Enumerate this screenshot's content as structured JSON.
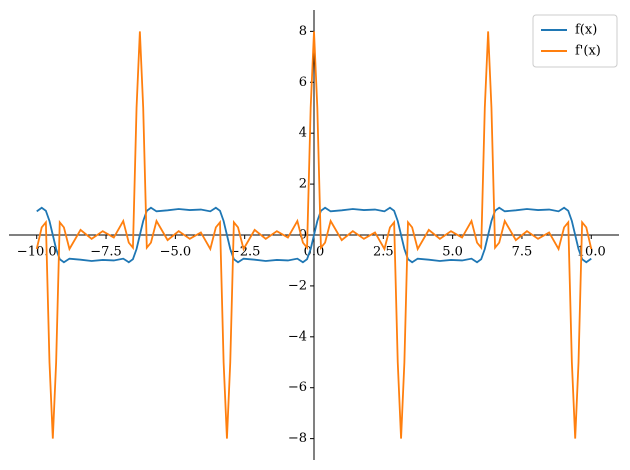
{
  "chart_data": {
    "type": "line",
    "x": [
      -10,
      -9.82,
      -9.67,
      -9.54,
      -9.42,
      -9.3,
      -9.17,
      -9.02,
      -8.82,
      -8.42,
      -8.02,
      -7.62,
      -7.22,
      -6.88,
      -6.68,
      -6.53,
      -6.4,
      -6.28,
      -6.16,
      -6.03,
      -5.88,
      -5.68,
      -5.28,
      -4.88,
      -4.48,
      -4.08,
      -3.74,
      -3.54,
      -3.39,
      -3.26,
      -3.14,
      -3.02,
      -2.89,
      -2.74,
      -2.54,
      -2.14,
      -1.74,
      -1.34,
      -0.94,
      -0.6,
      -0.4,
      -0.25,
      -0.12,
      0,
      0.12,
      0.25,
      0.4,
      0.6,
      1.0,
      1.4,
      1.8,
      2.2,
      2.54,
      2.74,
      2.89,
      3.02,
      3.14,
      3.26,
      3.39,
      3.54,
      3.74,
      4.14,
      4.54,
      4.94,
      5.34,
      5.68,
      5.88,
      6.03,
      6.16,
      6.28,
      6.4,
      6.53,
      6.68,
      6.88,
      7.28,
      7.68,
      8.08,
      8.48,
      8.82,
      9.02,
      9.17,
      9.3,
      9.42,
      9.54,
      9.67,
      9.82,
      10
    ],
    "series": [
      {
        "name": "f(x)",
        "color": "#1f77b4",
        "values": [
          0.93,
          1.07,
          0.95,
          0.55,
          0,
          -0.55,
          -0.95,
          -1.07,
          -0.93,
          -0.97,
          -1.02,
          -0.98,
          -1.0,
          -0.93,
          -1.07,
          -0.95,
          -0.55,
          0,
          0.55,
          0.95,
          1.07,
          0.93,
          0.97,
          1.02,
          0.98,
          1.0,
          0.93,
          1.07,
          0.95,
          0.55,
          0,
          -0.55,
          -0.95,
          -1.07,
          -0.93,
          -0.97,
          -1.02,
          -0.98,
          -1.0,
          -0.93,
          -1.07,
          -0.95,
          -0.55,
          0,
          0.55,
          0.95,
          1.07,
          0.93,
          0.97,
          1.02,
          0.98,
          1.0,
          0.93,
          1.07,
          0.95,
          0.55,
          0,
          -0.55,
          -0.95,
          -1.07,
          -0.93,
          -0.97,
          -1.02,
          -0.98,
          -1.0,
          -0.93,
          -1.07,
          -0.95,
          -0.55,
          0,
          0.55,
          0.95,
          1.07,
          0.93,
          0.97,
          1.02,
          0.98,
          1.0,
          0.93,
          1.07,
          0.95,
          0.55,
          0,
          -0.55,
          -0.95,
          -1.07,
          -0.93
        ]
      },
      {
        "name": "f'(x)",
        "color": "#ff7f0e",
        "values": [
          -0.55,
          0.3,
          0.5,
          -5.0,
          -8,
          -5.0,
          0.5,
          0.3,
          -0.55,
          0.2,
          -0.15,
          0.15,
          -0.1,
          0.55,
          -0.3,
          -0.5,
          5.0,
          8,
          5.0,
          -0.5,
          -0.3,
          0.55,
          -0.2,
          0.15,
          -0.15,
          0.1,
          -0.55,
          0.3,
          0.5,
          -5.0,
          -8,
          -5.0,
          0.5,
          0.3,
          -0.55,
          0.2,
          -0.15,
          0.15,
          -0.1,
          0.55,
          -0.3,
          -0.5,
          5.0,
          8,
          5.0,
          -0.5,
          -0.3,
          0.55,
          -0.2,
          0.15,
          -0.15,
          0.1,
          -0.55,
          0.3,
          0.5,
          -5.0,
          -8,
          -5.0,
          0.5,
          0.3,
          -0.55,
          0.2,
          -0.15,
          0.15,
          -0.1,
          0.55,
          -0.3,
          -0.5,
          5.0,
          8,
          5.0,
          -0.5,
          -0.3,
          0.55,
          -0.2,
          0.15,
          -0.15,
          0.1,
          -0.55,
          0.3,
          0.5,
          -5.0,
          -8,
          -5.0,
          0.5,
          0.3,
          -0.55
        ]
      }
    ],
    "xlim": [
      -11,
      11
    ],
    "ylim": [
      -8.84,
      8.84
    ],
    "xticks": [
      {
        "value": -10,
        "label": "−10.0"
      },
      {
        "value": -7.5,
        "label": "−7.5"
      },
      {
        "value": -5,
        "label": "−5.0"
      },
      {
        "value": -2.5,
        "label": "−2.5"
      },
      {
        "value": 0,
        "label": "0.0"
      },
      2.5,
      {
        "value": 5,
        "label": "5.0"
      },
      7.5,
      {
        "value": 10,
        "label": "10.0"
      }
    ],
    "yticks": [
      {
        "value": -8,
        "label": "−8"
      },
      {
        "value": -6,
        "label": "−6"
      },
      {
        "value": -4,
        "label": "−4"
      },
      {
        "value": -2,
        "label": "−2"
      },
      0,
      2,
      4,
      6,
      8
    ],
    "legend": "upper right"
  }
}
